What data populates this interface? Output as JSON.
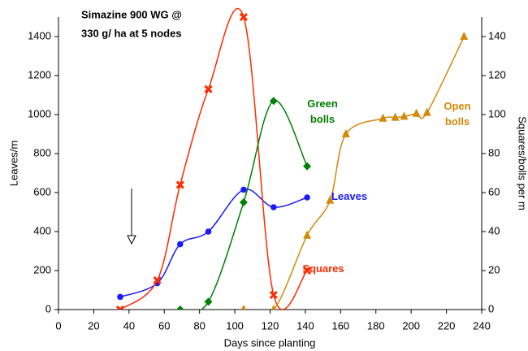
{
  "chart_data": {
    "type": "line",
    "title": [
      "Simazine 900 WG @",
      "330 g/ ha at 5 nodes"
    ],
    "x_label": "Days since planting",
    "y_label": "Leaves/m",
    "y2_label": "Squares/bolls per m",
    "xlim": [
      0,
      240
    ],
    "xticks": [
      0,
      20,
      40,
      60,
      80,
      100,
      120,
      140,
      160,
      180,
      200,
      220,
      240
    ],
    "ylim": [
      0,
      1500
    ],
    "yticks": [
      0,
      200,
      400,
      600,
      800,
      1000,
      1200,
      1400
    ],
    "y2lim": [
      0,
      150
    ],
    "y2ticks": [
      0,
      20,
      40,
      60,
      80,
      100,
      120,
      140
    ],
    "series": [
      {
        "name": "Leaves",
        "color": "#1a1aff",
        "marker": "circle",
        "axis": "y",
        "x": [
          35,
          56,
          69,
          85,
          105,
          122,
          141
        ],
        "values": [
          65,
          135,
          335,
          400,
          615,
          525,
          575
        ]
      },
      {
        "name": "Squares",
        "color": "#ff2a00",
        "marker": "cross",
        "axis": "y2",
        "x": [
          35,
          56,
          69,
          85,
          105,
          122,
          141
        ],
        "values": [
          0,
          15,
          64,
          113,
          150,
          7.5,
          20
        ]
      },
      {
        "name": "Green bolls",
        "color": "#008000",
        "marker": "diamond",
        "axis": "y2",
        "x": [
          69,
          85,
          105,
          122,
          141
        ],
        "values": [
          0,
          4,
          55,
          107,
          73.5
        ]
      },
      {
        "name": "Open bolls",
        "color": "#d4890a",
        "marker": "triangle",
        "axis": "y2",
        "x": [
          105,
          122,
          141,
          154,
          163,
          184,
          191,
          196,
          203,
          209,
          230
        ],
        "values": [
          0,
          0,
          38,
          56,
          90,
          98,
          98.5,
          99,
          100.5,
          101,
          140
        ]
      }
    ]
  }
}
